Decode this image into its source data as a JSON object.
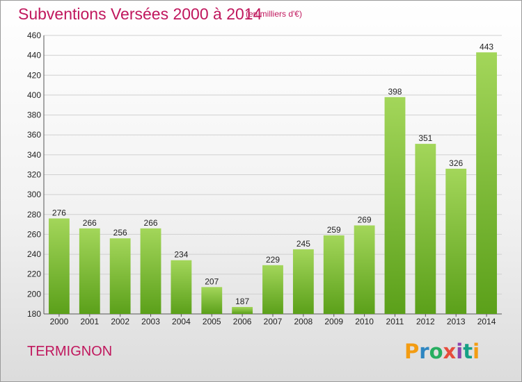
{
  "header": {
    "title": "Subventions Versées 2000 à 2014",
    "unit": "(en milliers d'€)"
  },
  "footer": {
    "commune": "TERMIGNON",
    "logo": "Proxiti"
  },
  "colors": {
    "title": "#c0175d",
    "bar_top": "#a3d65a",
    "bar_bottom": "#5ba01a",
    "grid": "#d0d0d0"
  },
  "chart_data": {
    "type": "bar",
    "title": "Subventions Versées 2000 à 2014",
    "xlabel": "",
    "ylabel": "",
    "categories": [
      "2000",
      "2001",
      "2002",
      "2003",
      "2004",
      "2005",
      "2006",
      "2007",
      "2008",
      "2009",
      "2010",
      "2011",
      "2012",
      "2013",
      "2014"
    ],
    "values": [
      276,
      266,
      256,
      266,
      234,
      207,
      187,
      229,
      245,
      259,
      269,
      398,
      351,
      326,
      443
    ],
    "ylim": [
      180,
      460
    ],
    "yticks": [
      180,
      200,
      220,
      240,
      260,
      280,
      300,
      320,
      340,
      360,
      380,
      400,
      420,
      440,
      460
    ],
    "grid": true,
    "data_labels": true
  }
}
